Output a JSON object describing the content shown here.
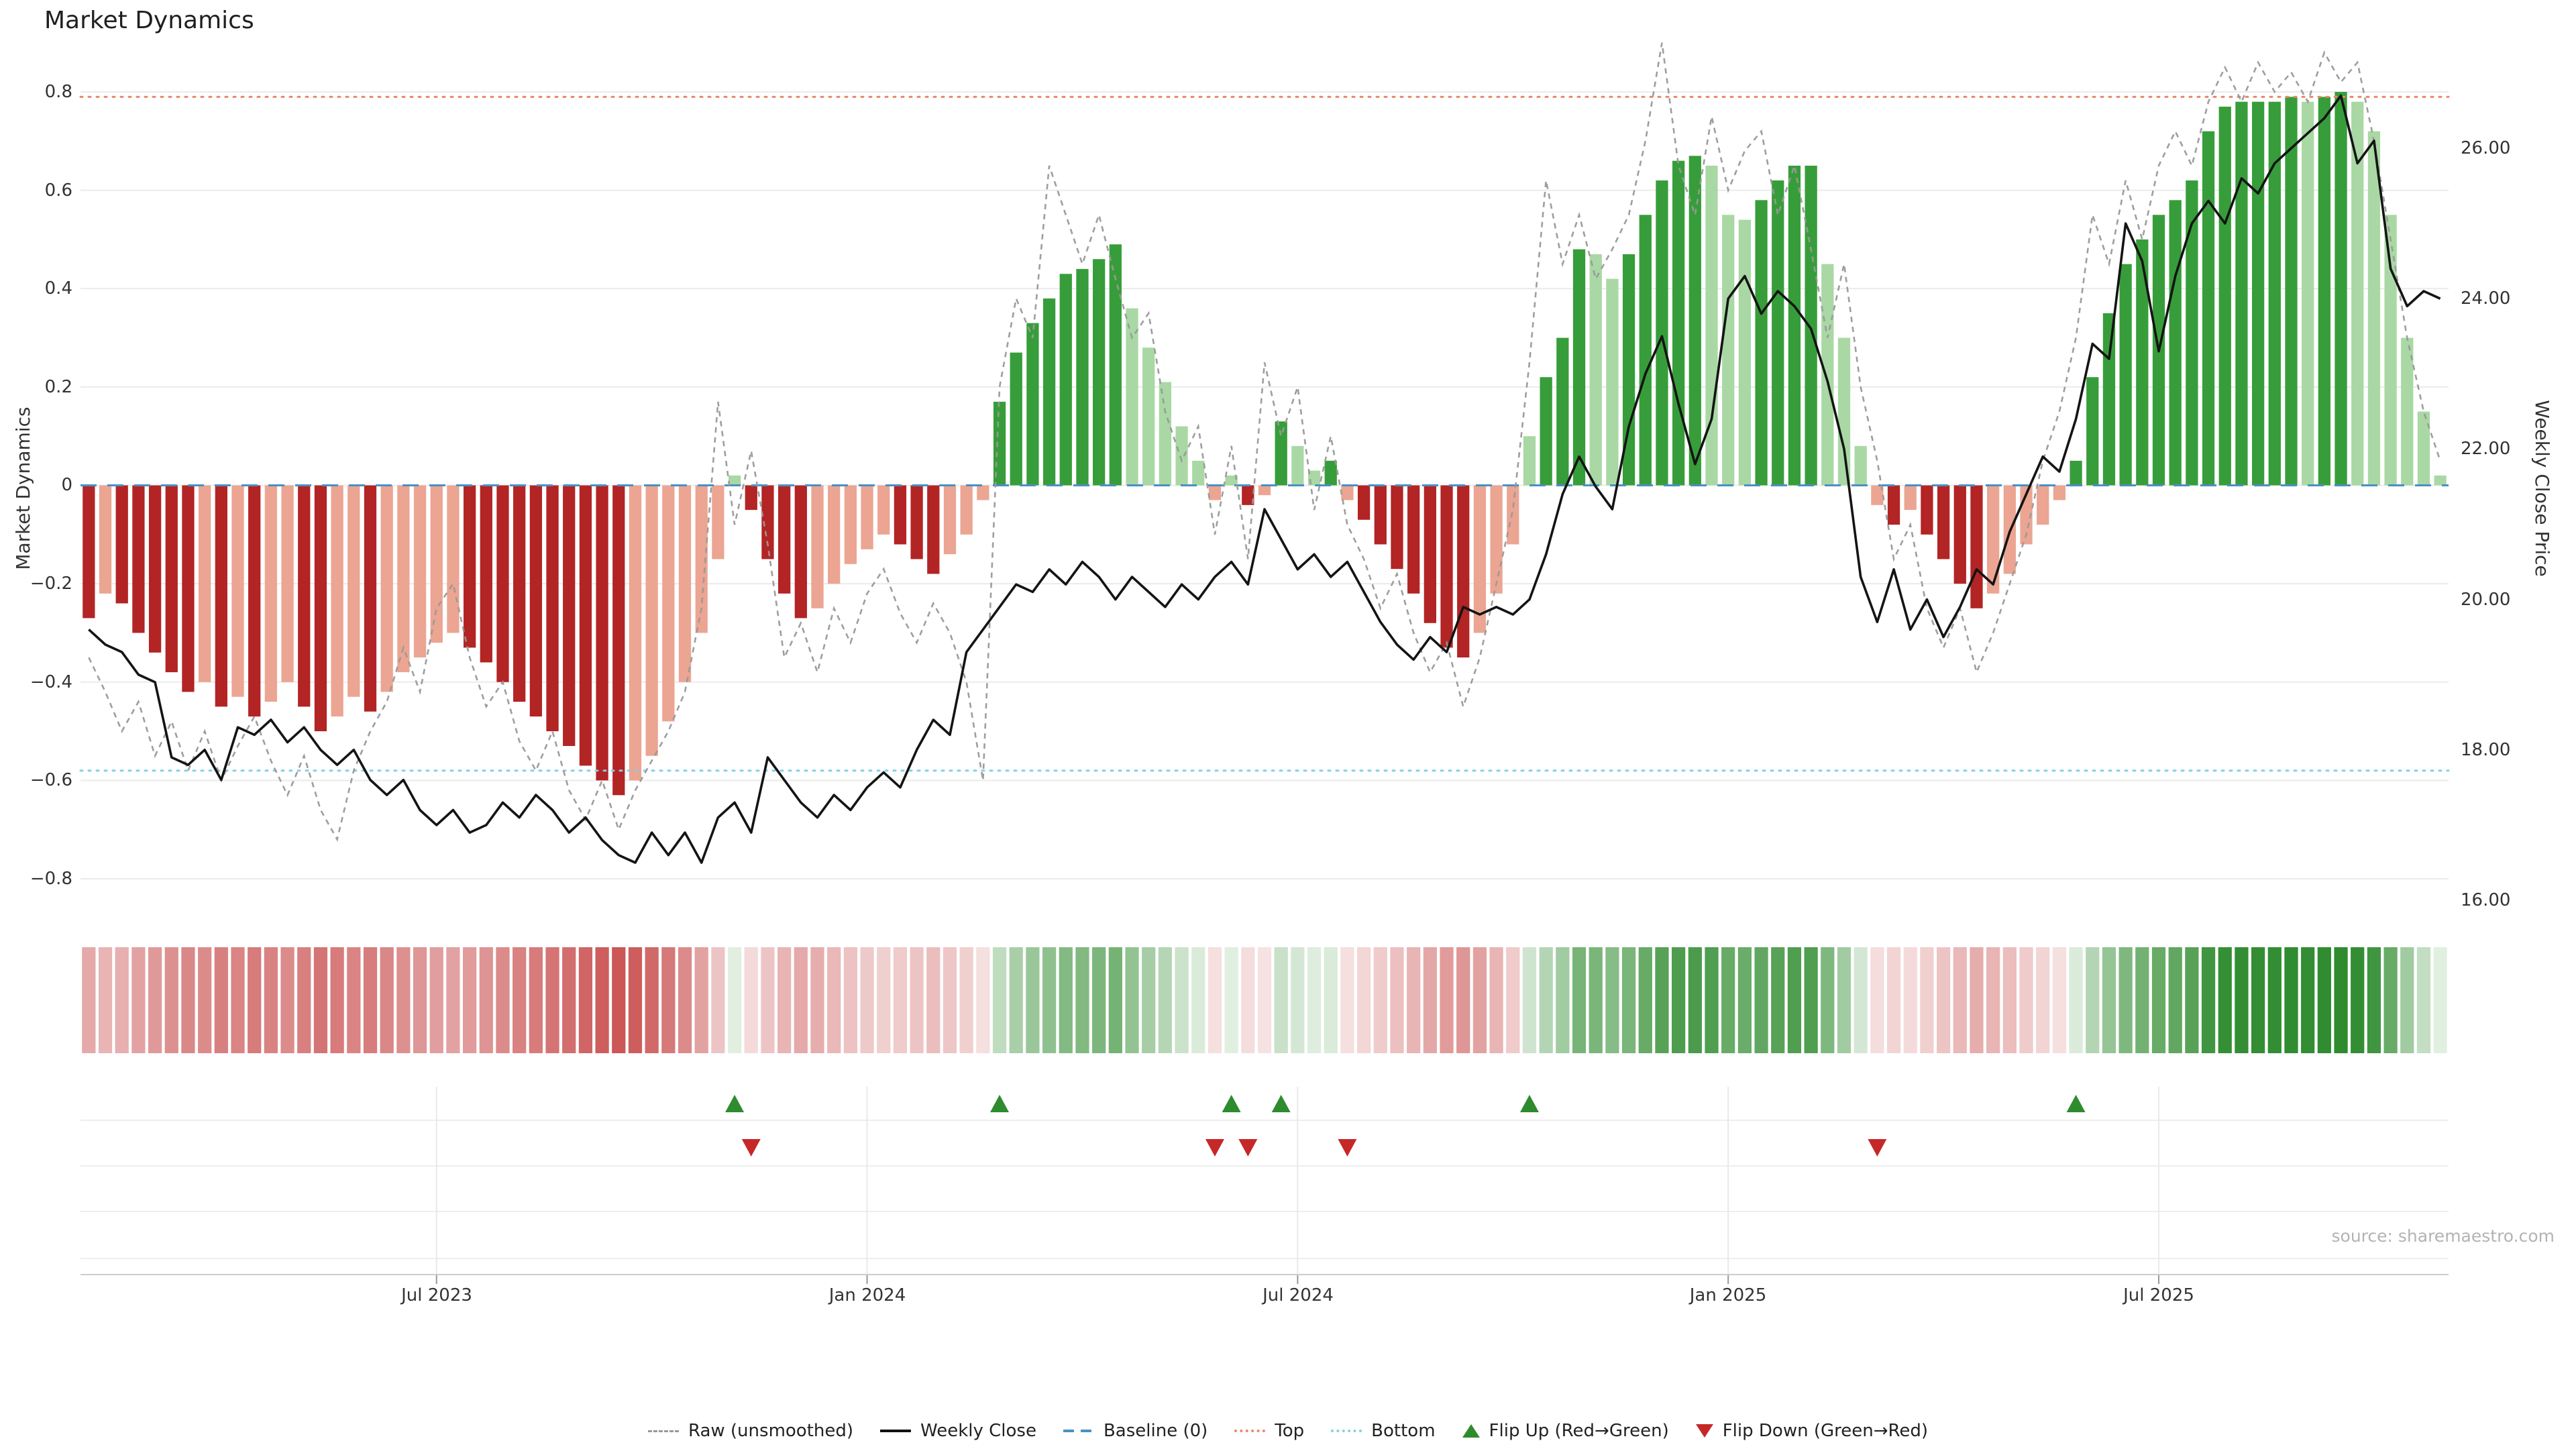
{
  "title": "Market Dynamics",
  "source": "source: sharemaestro.com",
  "axes": {
    "left_label": "Market Dynamics",
    "right_label": "Weekly Close Price",
    "left_ticks": [
      "0.8",
      "0.6",
      "0.4",
      "0.2",
      "0",
      "−0.2",
      "−0.4",
      "−0.6",
      "−0.8"
    ],
    "right_ticks": [
      "26.00",
      "24.00",
      "22.00",
      "20.00",
      "18.00",
      "16.00"
    ],
    "x_ticks": [
      {
        "label": "Jul 2023",
        "index": 21
      },
      {
        "label": "Jan 2024",
        "index": 47
      },
      {
        "label": "Jul 2024",
        "index": 73
      },
      {
        "label": "Jan 2025",
        "index": 99
      },
      {
        "label": "Jul 2025",
        "index": 125
      }
    ]
  },
  "legend": {
    "items": [
      {
        "label": "Raw (unsmoothed)",
        "swatch": "dashed-line",
        "color": "#999999"
      },
      {
        "label": "Weekly Close",
        "swatch": "solid-line",
        "color": "#111111"
      },
      {
        "label": "Baseline (0)",
        "swatch": "long-dash-line",
        "color": "#4a90c4"
      },
      {
        "label": "Top",
        "swatch": "dotted-line",
        "color": "#e8886a"
      },
      {
        "label": "Bottom",
        "swatch": "dotted-line",
        "color": "#85cfe3"
      },
      {
        "label": "Flip Up (Red→Green)",
        "swatch": "triangle-up",
        "color": "#2e8b2e"
      },
      {
        "label": "Flip Down (Green→Red)",
        "swatch": "triangle-down",
        "color": "#c62828"
      }
    ]
  },
  "chart_data": {
    "type": "combo",
    "subtype": "bar+line with heatmap strip and flip markers",
    "n_points": 143,
    "x_unit": "week",
    "baseline": 0,
    "top_level": 0.79,
    "bottom_level": -0.58,
    "ylim_left": [
      -0.86,
      0.88
    ],
    "ylim_right": [
      16.0,
      26.5
    ],
    "left_tick_values": [
      0.8,
      0.6,
      0.4,
      0.2,
      0,
      -0.2,
      -0.4,
      -0.6,
      -0.8
    ],
    "right_tick_values": [
      26,
      24,
      22,
      20,
      18,
      16
    ],
    "series": [
      {
        "name": "Market Dynamics (smoothed bars)",
        "type": "bar",
        "axis": "left",
        "values": [
          -0.27,
          -0.22,
          -0.24,
          -0.3,
          -0.34,
          -0.38,
          -0.42,
          -0.4,
          -0.45,
          -0.43,
          -0.47,
          -0.44,
          -0.4,
          -0.45,
          -0.5,
          -0.47,
          -0.43,
          -0.46,
          -0.42,
          -0.38,
          -0.35,
          -0.32,
          -0.3,
          -0.33,
          -0.36,
          -0.4,
          -0.44,
          -0.47,
          -0.5,
          -0.53,
          -0.57,
          -0.6,
          -0.63,
          -0.6,
          -0.55,
          -0.48,
          -0.4,
          -0.3,
          -0.15,
          0.02,
          -0.05,
          -0.15,
          -0.22,
          -0.27,
          -0.25,
          -0.2,
          -0.16,
          -0.13,
          -0.1,
          -0.12,
          -0.15,
          -0.18,
          -0.14,
          -0.1,
          -0.03,
          0.17,
          0.27,
          0.33,
          0.38,
          0.43,
          0.44,
          0.46,
          0.49,
          0.36,
          0.28,
          0.21,
          0.12,
          0.05,
          -0.03,
          0.02,
          -0.04,
          -0.02,
          0.13,
          0.08,
          0.03,
          0.05,
          -0.03,
          -0.07,
          -0.12,
          -0.17,
          -0.22,
          -0.28,
          -0.33,
          -0.35,
          -0.3,
          -0.22,
          -0.12,
          0.1,
          0.22,
          0.3,
          0.48,
          0.47,
          0.42,
          0.47,
          0.55,
          0.62,
          0.66,
          0.67,
          0.65,
          0.55,
          0.54,
          0.58,
          0.62,
          0.65,
          0.65,
          0.45,
          0.3,
          0.08,
          -0.04,
          -0.08,
          -0.05,
          -0.1,
          -0.15,
          -0.2,
          -0.25,
          -0.22,
          -0.18,
          -0.12,
          -0.08,
          -0.03,
          0.05,
          0.22,
          0.35,
          0.45,
          0.5,
          0.55,
          0.58,
          0.62,
          0.72,
          0.77,
          0.78,
          0.78,
          0.78,
          0.79,
          0.78,
          0.79,
          0.8,
          0.78,
          0.72,
          0.55,
          0.3,
          0.15,
          0.02
        ]
      },
      {
        "name": "Raw (unsmoothed)",
        "type": "line",
        "style": "dashed",
        "axis": "left",
        "values": [
          -0.35,
          -0.42,
          -0.5,
          -0.44,
          -0.55,
          -0.48,
          -0.58,
          -0.5,
          -0.6,
          -0.53,
          -0.47,
          -0.56,
          -0.63,
          -0.55,
          -0.66,
          -0.72,
          -0.58,
          -0.5,
          -0.44,
          -0.33,
          -0.42,
          -0.25,
          -0.2,
          -0.35,
          -0.45,
          -0.4,
          -0.52,
          -0.58,
          -0.5,
          -0.62,
          -0.68,
          -0.6,
          -0.7,
          -0.62,
          -0.56,
          -0.5,
          -0.42,
          -0.25,
          0.17,
          -0.08,
          0.07,
          -0.12,
          -0.35,
          -0.28,
          -0.38,
          -0.25,
          -0.32,
          -0.22,
          -0.17,
          -0.26,
          -0.32,
          -0.24,
          -0.3,
          -0.4,
          -0.6,
          0.2,
          0.38,
          0.3,
          0.65,
          0.55,
          0.45,
          0.55,
          0.42,
          0.3,
          0.35,
          0.15,
          0.05,
          0.12,
          -0.1,
          0.08,
          -0.15,
          0.25,
          0.1,
          0.2,
          -0.05,
          0.1,
          -0.08,
          -0.15,
          -0.25,
          -0.18,
          -0.3,
          -0.38,
          -0.32,
          -0.45,
          -0.35,
          -0.2,
          -0.05,
          0.25,
          0.62,
          0.45,
          0.55,
          0.42,
          0.48,
          0.55,
          0.7,
          0.9,
          0.65,
          0.55,
          0.75,
          0.6,
          0.68,
          0.72,
          0.55,
          0.65,
          0.48,
          0.3,
          0.45,
          0.2,
          0.05,
          -0.15,
          -0.08,
          -0.25,
          -0.33,
          -0.25,
          -0.38,
          -0.3,
          -0.2,
          -0.1,
          0.05,
          0.15,
          0.3,
          0.55,
          0.45,
          0.62,
          0.5,
          0.65,
          0.72,
          0.65,
          0.78,
          0.85,
          0.78,
          0.86,
          0.8,
          0.84,
          0.78,
          0.88,
          0.82,
          0.86,
          0.7,
          0.5,
          0.3,
          0.15,
          0.05
        ]
      },
      {
        "name": "Weekly Close",
        "type": "line",
        "axis": "right",
        "values": [
          19.6,
          19.4,
          19.3,
          19.0,
          18.9,
          17.9,
          17.8,
          18.0,
          17.6,
          18.3,
          18.2,
          18.4,
          18.1,
          18.3,
          18.0,
          17.8,
          18.0,
          17.6,
          17.4,
          17.6,
          17.2,
          17.0,
          17.2,
          16.9,
          17.0,
          17.3,
          17.1,
          17.4,
          17.2,
          16.9,
          17.1,
          16.8,
          16.6,
          16.5,
          16.9,
          16.6,
          16.9,
          16.5,
          17.1,
          17.3,
          16.9,
          17.9,
          17.6,
          17.3,
          17.1,
          17.4,
          17.2,
          17.5,
          17.7,
          17.5,
          18.0,
          18.4,
          18.2,
          19.3,
          19.6,
          19.9,
          20.2,
          20.1,
          20.4,
          20.2,
          20.5,
          20.3,
          20.0,
          20.3,
          20.1,
          19.9,
          20.2,
          20.0,
          20.3,
          20.5,
          20.2,
          21.2,
          20.8,
          20.4,
          20.6,
          20.3,
          20.5,
          20.1,
          19.7,
          19.4,
          19.2,
          19.5,
          19.3,
          19.9,
          19.8,
          19.9,
          19.8,
          20.0,
          20.6,
          21.4,
          21.9,
          21.5,
          21.2,
          22.3,
          23.0,
          23.5,
          22.6,
          21.8,
          22.4,
          24.0,
          24.3,
          23.8,
          24.1,
          23.9,
          23.6,
          22.9,
          22.0,
          20.3,
          19.7,
          20.4,
          19.6,
          20.0,
          19.5,
          19.9,
          20.4,
          20.2,
          20.9,
          21.4,
          21.9,
          21.7,
          22.4,
          23.4,
          23.2,
          25.0,
          24.5,
          23.3,
          24.3,
          25.0,
          25.3,
          25.0,
          25.6,
          25.4,
          25.8,
          26.0,
          26.2,
          26.4,
          26.7,
          25.8,
          26.1,
          24.4,
          23.9,
          24.1,
          24.0
        ]
      }
    ],
    "flip_up_indices": [
      39,
      55,
      69,
      72,
      87,
      120
    ],
    "flip_down_indices": [
      40,
      68,
      70,
      76,
      108
    ],
    "colors": {
      "bar_pos_strong": "#379d3a",
      "bar_pos_weak": "#a9d8a4",
      "bar_neg_strong": "#b32424",
      "bar_neg_weak": "#eba592",
      "raw_line": "#999999",
      "price_line": "#141414",
      "baseline": "#4a90c4",
      "top_line": "#e8886a",
      "bottom_line": "#85cfe3",
      "flip_up": "#2e8b2e",
      "flip_down": "#c62828",
      "heat_pos": "#2e8b2e",
      "heat_neg": "#c03030",
      "grid": "#ebebeb",
      "panel_grid": "#e9e9e9",
      "axis_line": "#cccccc"
    }
  }
}
